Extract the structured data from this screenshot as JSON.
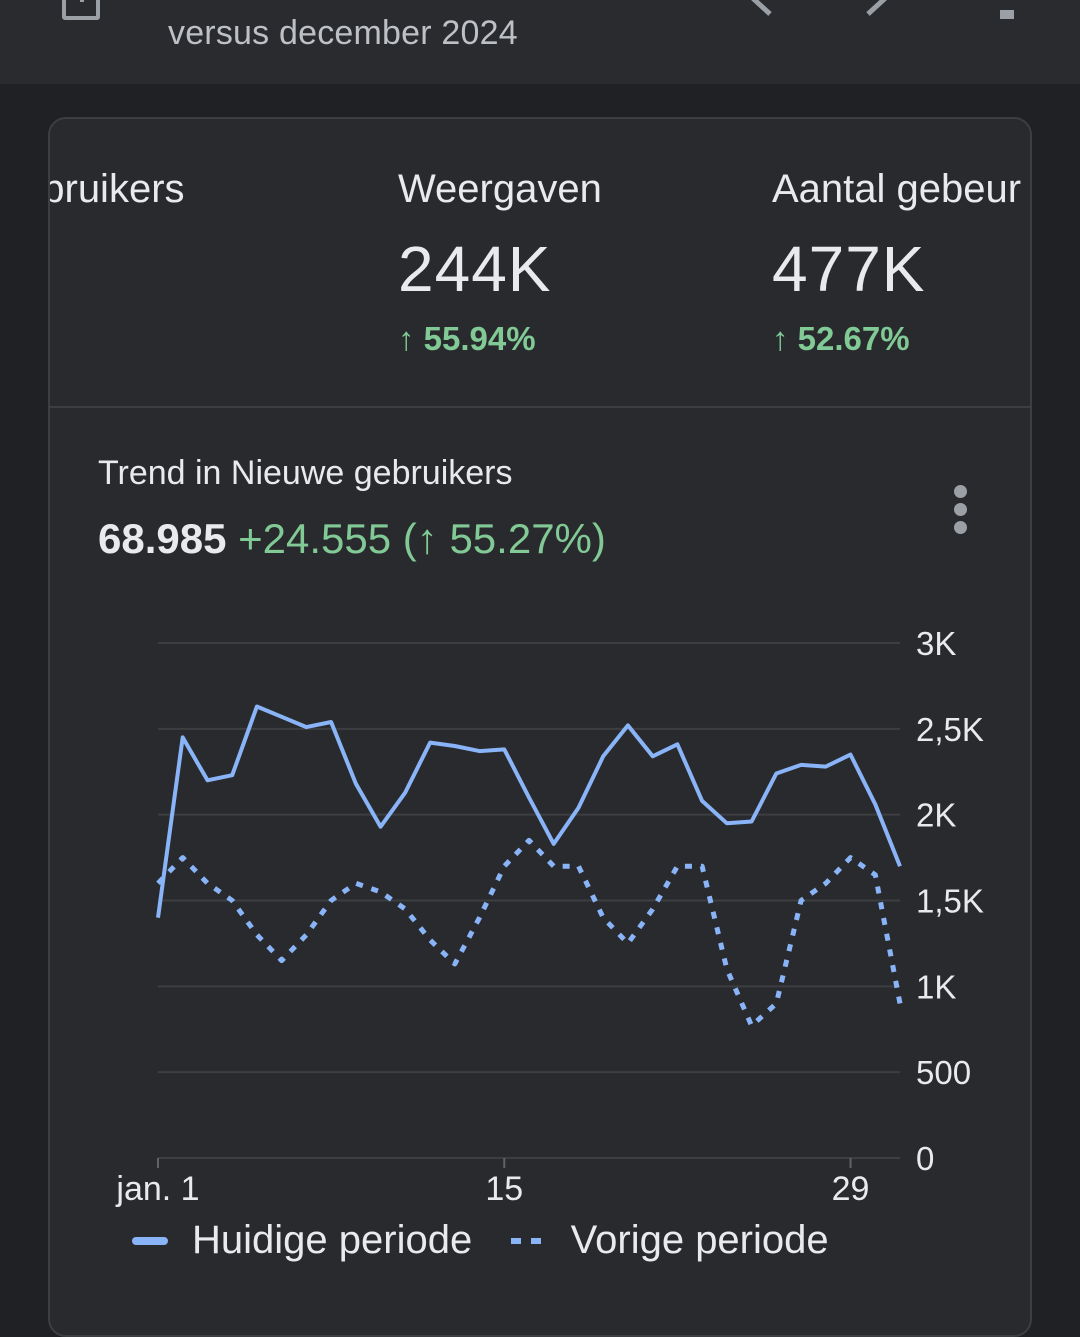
{
  "header": {
    "subtitle": "versus december 2024",
    "icons": [
      "report-icon",
      "chevron-left-icon",
      "chevron-right-icon",
      "filter-icon"
    ]
  },
  "metrics": [
    {
      "label": "ebruikers",
      "value": "",
      "change": ""
    },
    {
      "label": "Weergaven",
      "value": "244K",
      "change": "↑ 55.94%"
    },
    {
      "label": "Aantal gebeur",
      "value": "477K",
      "change": "↑ 52.67%"
    }
  ],
  "trend": {
    "title": "Trend in Nieuwe gebruikers",
    "value": "68.985",
    "change": "+24.555 (↑ 55.27%)"
  },
  "colors": {
    "accent": "#8ab4f8",
    "positive": "#81c995",
    "background": "#202124",
    "card": "#292a2d"
  },
  "chart_data": {
    "type": "line",
    "x_ticks": [
      "jan. 1",
      "15",
      "29"
    ],
    "y_ticks": [
      "0",
      "500",
      "1K",
      "1,5K",
      "2K",
      "2,5K",
      "3K"
    ],
    "ylim": [
      0,
      3000
    ],
    "grid": true,
    "legend_position": "bottom",
    "series": [
      {
        "name": "Huidige periode",
        "style": "solid",
        "values": [
          1400,
          2450,
          2200,
          2230,
          2630,
          2570,
          2510,
          2540,
          2180,
          1930,
          2130,
          2420,
          2400,
          2370,
          2380,
          2100,
          1830,
          2040,
          2340,
          2520,
          2340,
          2410,
          2080,
          1950,
          1960,
          2240,
          2290,
          2280,
          2350,
          2060,
          1700
        ]
      },
      {
        "name": "Vorige periode",
        "style": "dashed",
        "values": [
          1600,
          1750,
          1600,
          1500,
          1300,
          1150,
          1300,
          1500,
          1600,
          1550,
          1450,
          1270,
          1130,
          1400,
          1700,
          1850,
          1700,
          1700,
          1400,
          1250,
          1450,
          1700,
          1700,
          1100,
          770,
          900,
          1500,
          1600,
          1750,
          1650,
          900
        ]
      }
    ]
  }
}
